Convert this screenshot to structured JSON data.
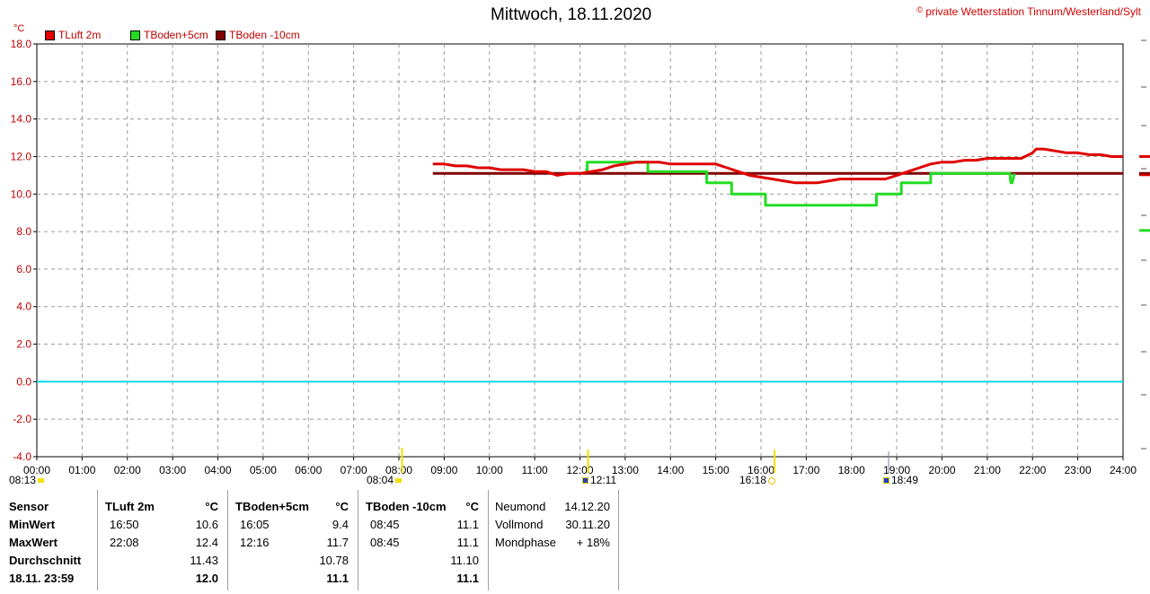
{
  "chart_data": {
    "type": "line",
    "title": "Mittwoch, 18.11.2020",
    "copyright": "private Wetterstation Tinnum/Westerland/Sylt",
    "ylabel": "°C",
    "ylim": [
      -4,
      18
    ],
    "yticks": [
      "-4.0",
      "-2.0",
      "0.0",
      "2.0",
      "4.0",
      "6.0",
      "8.0",
      "10.0",
      "12.0",
      "14.0",
      "16.0",
      "18.0"
    ],
    "xlim": [
      0,
      24
    ],
    "xticks": [
      "00:00",
      "01:00",
      "02:00",
      "03:00",
      "04:00",
      "05:00",
      "06:00",
      "07:00",
      "08:00",
      "09:00",
      "10:00",
      "11:00",
      "12:00",
      "13:00",
      "14:00",
      "15:00",
      "16:00",
      "17:00",
      "18:00",
      "19:00",
      "20:00",
      "21:00",
      "22:00",
      "23:00",
      "24:00"
    ],
    "grid": true,
    "colors": {
      "tluft": "#e00000",
      "tboden5": "#22dd22",
      "tboden10": "#800000",
      "zero": "#00d8e8"
    },
    "series": [
      {
        "name": "TLuft 2m",
        "color": "#e00000",
        "x": [
          8.75,
          9,
          9.25,
          9.5,
          9.75,
          10,
          10.25,
          10.5,
          10.75,
          11,
          11.25,
          11.5,
          11.75,
          12,
          12.25,
          12.5,
          12.75,
          13,
          13.25,
          13.5,
          13.75,
          14,
          14.25,
          14.5,
          14.75,
          15,
          15.25,
          15.5,
          15.75,
          16,
          16.25,
          16.5,
          16.75,
          17,
          17.25,
          17.5,
          17.75,
          18,
          18.25,
          18.5,
          18.75,
          19,
          19.25,
          19.5,
          19.75,
          20,
          20.25,
          20.5,
          20.75,
          21,
          21.25,
          21.5,
          21.75,
          22,
          22.08,
          22.25,
          22.5,
          22.75,
          23,
          23.25,
          23.5,
          23.75,
          24
        ],
        "y": [
          11.6,
          11.6,
          11.5,
          11.5,
          11.4,
          11.4,
          11.3,
          11.3,
          11.3,
          11.2,
          11.2,
          11.0,
          11.1,
          11.1,
          11.2,
          11.3,
          11.5,
          11.6,
          11.7,
          11.7,
          11.7,
          11.6,
          11.6,
          11.6,
          11.6,
          11.6,
          11.4,
          11.2,
          11.0,
          10.9,
          10.8,
          10.7,
          10.6,
          10.6,
          10.6,
          10.7,
          10.8,
          10.8,
          10.8,
          10.8,
          10.8,
          11.0,
          11.2,
          11.4,
          11.6,
          11.7,
          11.7,
          11.8,
          11.8,
          11.9,
          11.9,
          11.9,
          11.9,
          12.2,
          12.4,
          12.4,
          12.3,
          12.2,
          12.2,
          12.1,
          12.1,
          12.0,
          12.0
        ]
      },
      {
        "name": "TBoden+5cm",
        "color": "#22dd22",
        "x": [
          12.12,
          12.16,
          12.16,
          12.5,
          13.1,
          13.5,
          13.5,
          14.7,
          14.8,
          14.8,
          15.3,
          15.35,
          15.35,
          16.05,
          16.1,
          16.1,
          16.2,
          16.3,
          18.5,
          18.55,
          18.55,
          19.05,
          19.1,
          19.1,
          19.7,
          19.75,
          19.75,
          20.5,
          21.5,
          21.52,
          21.55,
          21.6
        ],
        "y": [
          11.3,
          11.3,
          11.7,
          11.7,
          11.7,
          11.7,
          11.2,
          11.2,
          11.2,
          10.6,
          10.6,
          10.6,
          10.0,
          10.0,
          10.0,
          9.4,
          9.4,
          9.4,
          9.4,
          9.4,
          10.0,
          10.0,
          10.0,
          10.6,
          10.6,
          10.6,
          11.1,
          11.1,
          11.1,
          10.6,
          10.6,
          11.1
        ]
      },
      {
        "name": "TBoden -10cm",
        "color": "#800000",
        "x": [
          8.75,
          24
        ],
        "y": [
          11.1,
          11.1
        ]
      }
    ],
    "markers": [
      {
        "label": "08:13",
        "time": 8.22
      },
      {
        "label": "08:04",
        "time": 8.07
      },
      {
        "label": "12:11",
        "time": 12.18
      },
      {
        "label": "16:18",
        "time": 16.3
      },
      {
        "label": "18:49",
        "time": 18.82
      }
    ]
  },
  "legend": [
    {
      "label": "TLuft 2m",
      "color": "#e00000"
    },
    {
      "label": "TBoden+5cm",
      "color": "#22dd22"
    },
    {
      "label": "TBoden -10cm",
      "color": "#800000"
    }
  ],
  "table": {
    "sensor": {
      "header": "Sensor",
      "min": "MinWert",
      "max": "MaxWert",
      "avg": "Durchschnitt",
      "current": "18.11. 23:59"
    },
    "tluft": {
      "header": "TLuft 2m",
      "unit": "°C",
      "min_time": "16:50",
      "min": "10.6",
      "max_time": "22:08",
      "max": "12.4",
      "avg": "11.43",
      "current": "12.0"
    },
    "tboden5": {
      "header": "TBoden+5cm",
      "unit": "°C",
      "min_time": "16:05",
      "min": "9.4",
      "max_time": "12:16",
      "max": "11.7",
      "avg": "10.78",
      "current": "11.1"
    },
    "tboden10": {
      "header": "TBoden -10cm",
      "unit": "°C",
      "min_time": "08:45",
      "min": "11.1",
      "max_time": "08:45",
      "max": "11.1",
      "avg": "11.10",
      "current": "11.1"
    },
    "moon": {
      "neumond_label": "Neumond",
      "neumond": "14.12.20",
      "vollmond_label": "Vollmond",
      "vollmond": "30.11.20",
      "phase_label": "Mondphase",
      "phase": "+ 18%"
    }
  }
}
